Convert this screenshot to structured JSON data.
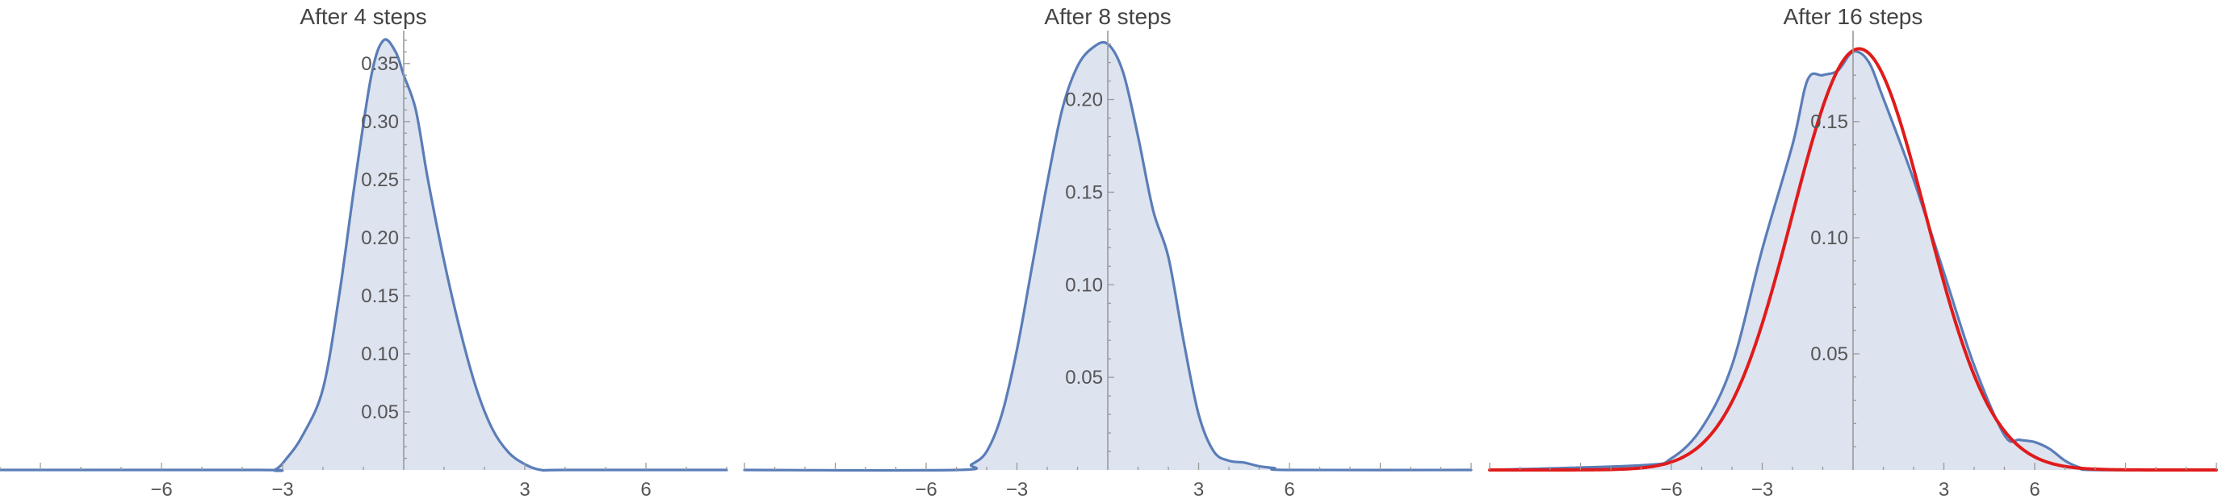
{
  "chart_data": [
    {
      "type": "area",
      "title": "After 4 steps",
      "xlabel": "",
      "ylabel": "",
      "xlim": [
        -10,
        8
      ],
      "ylim": [
        0,
        0.37
      ],
      "xticks": [
        -6,
        -3,
        3,
        6
      ],
      "xtick_labels": [
        "−6",
        "−3",
        "3",
        "6"
      ],
      "yticks": [
        0.05,
        0.1,
        0.15,
        0.2,
        0.25,
        0.3,
        0.35
      ],
      "ytick_labels": [
        "0.05",
        "0.10",
        "0.15",
        "0.20",
        "0.25",
        "0.30",
        "0.35"
      ],
      "grid": false,
      "series": [
        {
          "color": "#5a7db8",
          "fill": "#dde3ef",
          "x": [
            -12,
            -3.6,
            -3.2,
            -2.9,
            -2.5,
            -2.0,
            -1.6,
            -1.2,
            -0.8,
            -0.5,
            -0.2,
            0.0,
            0.3,
            0.6,
            1.0,
            1.4,
            1.8,
            2.2,
            2.6,
            3.0,
            3.4,
            4.0,
            12
          ],
          "y": [
            0,
            0,
            0.0,
            0.01,
            0.03,
            0.07,
            0.15,
            0.25,
            0.34,
            0.37,
            0.36,
            0.34,
            0.31,
            0.25,
            0.18,
            0.12,
            0.07,
            0.035,
            0.015,
            0.005,
            0.0,
            0,
            0
          ]
        }
      ]
    },
    {
      "type": "area",
      "title": "After 8 steps",
      "xlabel": "",
      "ylabel": "",
      "xlim": [
        -12,
        12
      ],
      "ylim": [
        0,
        0.232
      ],
      "xticks": [
        -6,
        -3,
        3,
        6
      ],
      "xtick_labels": [
        "−6",
        "−3",
        "3",
        "6"
      ],
      "yticks": [
        0.05,
        0.1,
        0.15,
        0.2
      ],
      "ytick_labels": [
        "0.05",
        "0.10",
        "0.15",
        "0.20"
      ],
      "grid": false,
      "series": [
        {
          "color": "#5a7db8",
          "fill": "#dde3ef",
          "x": [
            -14,
            -5.0,
            -4.5,
            -4.0,
            -3.5,
            -3.0,
            -2.5,
            -2.0,
            -1.5,
            -1.0,
            -0.5,
            0.0,
            0.5,
            1.0,
            1.5,
            2.0,
            2.5,
            3.0,
            3.5,
            4.0,
            4.5,
            5.0,
            5.5,
            6.0,
            14
          ],
          "y": [
            0,
            0.0,
            0.003,
            0.01,
            0.03,
            0.065,
            0.11,
            0.155,
            0.195,
            0.218,
            0.228,
            0.23,
            0.215,
            0.18,
            0.14,
            0.115,
            0.07,
            0.03,
            0.01,
            0.005,
            0.004,
            0.002,
            0.001,
            0.0,
            0
          ]
        }
      ]
    },
    {
      "type": "area",
      "title": "After 16 steps",
      "xlabel": "",
      "ylabel": "",
      "xlim": [
        -12,
        12
      ],
      "ylim": [
        0,
        0.185
      ],
      "xticks": [
        -6,
        -3,
        3,
        6
      ],
      "xtick_labels": [
        "−6",
        "−3",
        "3",
        "6"
      ],
      "yticks": [
        0.05,
        0.1,
        0.15
      ],
      "ytick_labels": [
        "0.05",
        "0.10",
        "0.15"
      ],
      "grid": false,
      "series": [
        {
          "color": "#5a7db8",
          "fill": "#dde3ef",
          "x": [
            -14,
            -7,
            -6.0,
            -5.0,
            -4.0,
            -3.0,
            -2.0,
            -1.5,
            -1.0,
            -0.5,
            0.0,
            0.5,
            1.0,
            2.0,
            3.0,
            4.0,
            5.0,
            5.5,
            6.0,
            6.5,
            7.0,
            7.5,
            8.0,
            14
          ],
          "y": [
            0,
            0.002,
            0.005,
            0.018,
            0.045,
            0.095,
            0.14,
            0.168,
            0.17,
            0.172,
            0.18,
            0.176,
            0.16,
            0.125,
            0.085,
            0.045,
            0.015,
            0.013,
            0.012,
            0.009,
            0.004,
            0.001,
            0.0,
            0
          ]
        },
        {
          "color": "#e01b1b",
          "type": "line",
          "function": "normal",
          "mean": 0.2,
          "sd": 2.2
        }
      ]
    }
  ]
}
